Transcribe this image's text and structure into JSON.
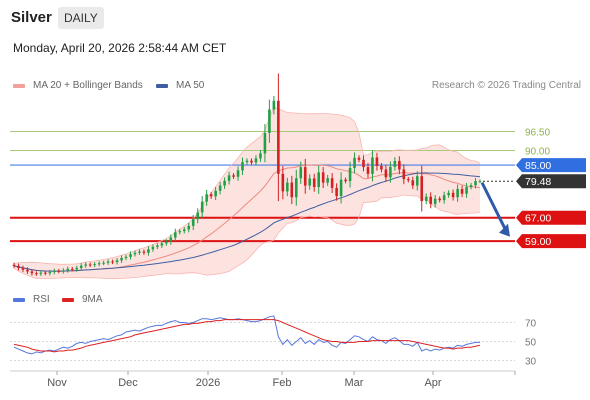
{
  "header": {
    "symbol": "Silver",
    "timeframe": "DAILY"
  },
  "datetime": "Monday, April 20, 2026 2:58:44 AM CET",
  "legend": {
    "ma20_bb": "MA 20 + Bollinger Bands",
    "ma20_color": "#f4a09a",
    "ma50": "MA 50",
    "ma50_color": "#3f5fa0",
    "rsi": "RSI",
    "rsi_color": "#5577dd",
    "ma9": "9MA",
    "ma9_color": "#dd2222"
  },
  "credit": "Research © 2026 Trading Central",
  "levels": [
    {
      "value": 96.5,
      "label": "96.50",
      "kind": "green"
    },
    {
      "value": 90.0,
      "label": "90.00",
      "kind": "green"
    },
    {
      "value": 85.0,
      "label": "85.00",
      "kind": "blue"
    },
    {
      "value": 79.48,
      "label": "79.48",
      "kind": "price"
    },
    {
      "value": 67.0,
      "label": "67.00",
      "kind": "red"
    },
    {
      "value": 59.0,
      "label": "59.00",
      "kind": "red"
    }
  ],
  "rsi_levels": [
    "70",
    "50",
    "30"
  ],
  "xaxis": [
    "Nov",
    "Dec",
    "2026",
    "Feb",
    "Mar",
    "Apr"
  ],
  "colors": {
    "up": "#22a046",
    "down": "#d32020",
    "blue_line": "#4a7de8",
    "red_line": "#dd1111",
    "green_line": "#a7c97a",
    "price_box": "#333333"
  },
  "chart_data": {
    "type": "candlestick",
    "price_ylim": [
      45,
      110
    ],
    "rsi_ylim": [
      20,
      80
    ],
    "closes": [
      50.5,
      49.8,
      49.2,
      48.6,
      48.0,
      47.8,
      48.2,
      48.0,
      48.4,
      48.8,
      48.6,
      49.0,
      49.5,
      49.3,
      49.8,
      50.6,
      51.0,
      50.8,
      51.1,
      51.4,
      51.6,
      52.0,
      51.8,
      52.4,
      53.2,
      53.6,
      54.5,
      55.0,
      55.4,
      55.0,
      56.2,
      57.0,
      57.5,
      58.2,
      58.8,
      60.2,
      62.0,
      62.4,
      63.0,
      64.2,
      66.5,
      68.8,
      72.5,
      75.0,
      74.3,
      76.2,
      78.0,
      79.6,
      81.5,
      81.0,
      83.2,
      86.0,
      86.5,
      85.9,
      87.3,
      89.0,
      96.0,
      104.0,
      107.0,
      82.0,
      76.0,
      79.0,
      74.0,
      80.5,
      84.3,
      78.0,
      80.4,
      77.5,
      82.5,
      79.0,
      80.5,
      77.2,
      74.4,
      80.0,
      79.5,
      84.0,
      87.5,
      86.8,
      84.3,
      82.0,
      87.6,
      84.7,
      83.5,
      80.8,
      84.4,
      86.4,
      83.5,
      80.2,
      79.8,
      78.0,
      81.2,
      72.7,
      74.2,
      71.7,
      73.5,
      73.0,
      74.7,
      75.5,
      74.0,
      76.8,
      75.2,
      77.5,
      78.1,
      79.5,
      79.5
    ],
    "rsi": [
      44,
      42,
      40,
      38,
      37,
      39,
      38,
      40,
      41,
      40,
      42,
      44,
      43,
      45,
      48,
      49,
      48,
      50,
      51,
      52,
      53,
      52,
      54,
      56,
      57,
      60,
      61,
      62,
      61,
      63,
      65,
      66,
      67,
      67,
      69,
      71,
      72,
      70,
      70,
      69,
      70,
      72,
      74,
      74,
      73,
      74,
      75,
      74,
      73,
      73,
      74,
      73,
      72,
      71,
      71,
      72,
      74,
      76,
      77,
      55,
      47,
      52,
      46,
      50,
      54,
      48,
      51,
      47,
      52,
      49,
      50,
      46,
      44,
      49,
      48,
      52,
      56,
      55,
      52,
      50,
      55,
      52,
      51,
      48,
      52,
      54,
      51,
      47,
      47,
      45,
      49,
      40,
      42,
      40,
      42,
      41,
      43,
      44,
      43,
      46,
      45,
      47,
      48,
      49,
      49
    ],
    "rsi_ma9": [
      47,
      46,
      45,
      44,
      42,
      41,
      40,
      40,
      40,
      39,
      40,
      40,
      41,
      41,
      42,
      43,
      45,
      46,
      47,
      48,
      49,
      50,
      51,
      52,
      53,
      54,
      55,
      57,
      58,
      59,
      60,
      61,
      62,
      63,
      64,
      65,
      66,
      67,
      68,
      68,
      69,
      69,
      70,
      71,
      71,
      72,
      72,
      73,
      73,
      73,
      73,
      73,
      73,
      73,
      73,
      73,
      73,
      73,
      73,
      72,
      70,
      68,
      66,
      64,
      62,
      60,
      58,
      56,
      54,
      52,
      51,
      50,
      50,
      49,
      49,
      49,
      49,
      50,
      50,
      50,
      51,
      51,
      51,
      51,
      51,
      51,
      51,
      51,
      51,
      50,
      49,
      48,
      47,
      46,
      45,
      44,
      43,
      43,
      42,
      43,
      43,
      44,
      44,
      45,
      46
    ]
  }
}
